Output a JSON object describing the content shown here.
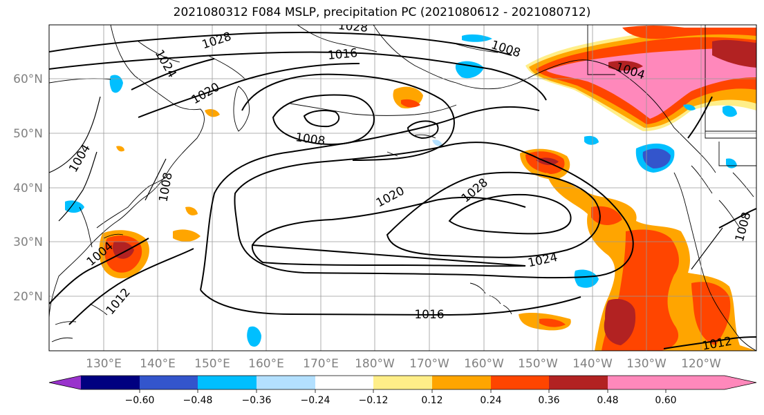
{
  "title": "2021080312 F084 MSLP, precipitation PC (2021080612 - 2021080712)",
  "map": {
    "lon_labels": [
      "130°E",
      "140°E",
      "150°E",
      "160°E",
      "170°E",
      "180°W",
      "170°W",
      "160°W",
      "150°W",
      "140°W",
      "130°W",
      "120°W"
    ],
    "lat_labels": [
      "60°N",
      "50°N",
      "40°N",
      "30°N",
      "20°N"
    ],
    "isobar_labels": [
      "1028",
      "1024",
      "1020",
      "1016",
      "1008",
      "1008",
      "1004",
      "1004",
      "1004",
      "1020",
      "1028",
      "1024",
      "1016",
      "1012",
      "1012",
      "1008",
      "1008",
      "1016"
    ]
  },
  "colorbar": {
    "colors": [
      "#9933cc",
      "#000080",
      "#3355cc",
      "#00bfff",
      "#b3e0ff",
      "#ffffff",
      "#ffee88",
      "#ffa500",
      "#ff4500",
      "#b22222",
      "#ff88bb"
    ],
    "labels": [
      "−0.60",
      "−0.48",
      "−0.36",
      "−0.24",
      "−0.12",
      "0.12",
      "0.24",
      "0.36",
      "0.48",
      "0.60"
    ]
  }
}
